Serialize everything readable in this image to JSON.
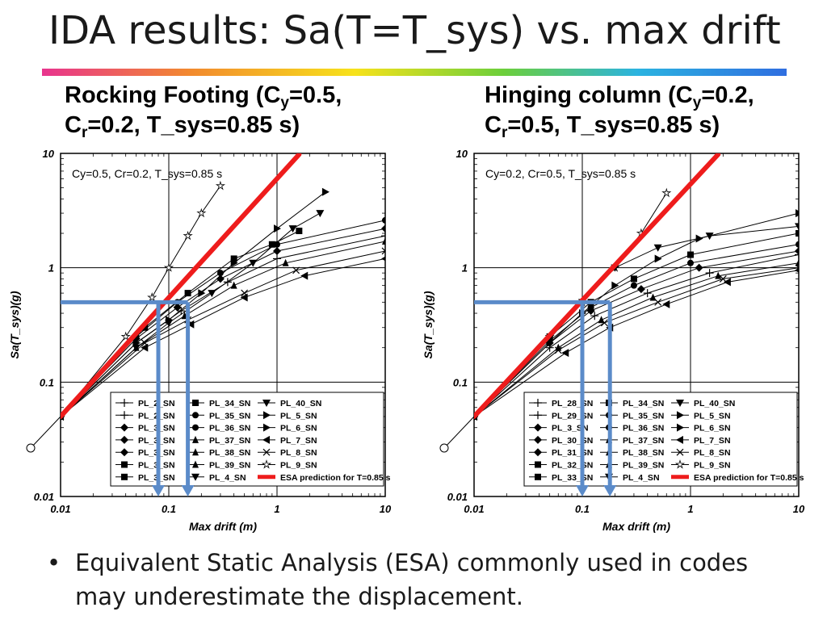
{
  "slide": {
    "title": "IDA results: Sa(T=T_sys) vs. max drift",
    "bullet": "Equivalent Static Analysis (ESA) commonly used in codes may underestimate the displacement.",
    "colors": {
      "esa_line": "#ee1c1c",
      "arrow": "#5b8bc9",
      "title_rule": [
        "#e8348e",
        "#f7e21b",
        "#2bb3e0",
        "#2f6ee0"
      ]
    }
  },
  "panels": [
    {
      "title_main": "Rocking Footing (C",
      "title_sub1": "y",
      "title_mid": "=0.5,",
      "title_line2_a": "C",
      "title_sub2": "r",
      "title_line2_b": "=0.2, T_sys=0.85 s)"
    },
    {
      "title_main": "Hinging column (C",
      "title_sub1": "y",
      "title_mid": "=0.2,",
      "title_line2_a": "C",
      "title_sub2": "r",
      "title_line2_b": "=0.5, T_sys=0.85 s)"
    }
  ],
  "chart_data": [
    {
      "type": "line",
      "annotation": "Cy=0.5, Cr=0.2, T_sys=0.85 s",
      "xlabel": "Max drift (m)",
      "ylabel": "Sa(T_sys)(g)",
      "xscale": "log",
      "yscale": "log",
      "xlim": [
        0.01,
        10
      ],
      "ylim": [
        0.01,
        10
      ],
      "xticks": [
        "0.01",
        "0.1",
        "1",
        "10"
      ],
      "yticks": [
        "0.01",
        "0.1",
        "1",
        "10"
      ],
      "grid": true,
      "legend_position": "bottom-right",
      "legend": [
        "PL_2_SN",
        "PL_2_SN",
        "PL_3_SN",
        "PL_3_SN",
        "PL_3_SN",
        "PL_3_SN",
        "PL_3_SN",
        "PL_34_SN",
        "PL_35_SN",
        "PL_36_SN",
        "PL_37_SN",
        "PL_38_SN",
        "PL_39_SN",
        "PL_4_SN",
        "PL_40_SN",
        "PL_5_SN",
        "PL_6_SN",
        "PL_7_SN",
        "PL_8_SN",
        "PL_9_SN",
        "ESA prediction for T=0.85 s"
      ],
      "esa_prediction": {
        "x": [
          0.01,
          1.6
        ],
        "y": [
          0.05,
          9.8
        ]
      },
      "design_level": {
        "sa": 0.5,
        "esa_drift": 0.08,
        "ida_drift": 0.15
      },
      "origin_point": {
        "x": 0.005,
        "y": 0.025
      },
      "ida_curves": [
        {
          "marker": "star",
          "x": [
            0.01,
            0.04,
            0.07,
            0.1,
            0.15,
            0.2,
            0.3
          ],
          "y": [
            0.05,
            0.25,
            0.55,
            1.0,
            1.9,
            3.0,
            5.2
          ]
        },
        {
          "marker": "tri_right",
          "x": [
            0.01,
            0.05,
            0.1,
            0.2,
            0.4,
            1.0,
            2.8
          ],
          "y": [
            0.05,
            0.22,
            0.35,
            0.6,
            1.1,
            2.2,
            4.6
          ]
        },
        {
          "marker": "tri_down",
          "x": [
            0.01,
            0.05,
            0.1,
            0.25,
            0.6,
            1.4,
            2.5
          ],
          "y": [
            0.05,
            0.2,
            0.33,
            0.6,
            1.1,
            2.2,
            3.0
          ]
        },
        {
          "marker": "square",
          "x": [
            0.01,
            0.06,
            0.15,
            0.4,
            0.9,
            1.6
          ],
          "y": [
            0.05,
            0.3,
            0.6,
            1.2,
            1.6,
            2.1
          ]
        },
        {
          "marker": "circle",
          "x": [
            0.01,
            0.05,
            0.12,
            0.3,
            1.0,
            10
          ],
          "y": [
            0.05,
            0.25,
            0.5,
            0.9,
            1.6,
            2.6
          ]
        },
        {
          "marker": "diamond",
          "x": [
            0.01,
            0.05,
            0.12,
            0.3,
            1.0,
            10
          ],
          "y": [
            0.05,
            0.24,
            0.45,
            0.8,
            1.4,
            2.2
          ]
        },
        {
          "marker": "plus",
          "x": [
            0.01,
            0.05,
            0.13,
            0.35,
            1.0,
            10
          ],
          "y": [
            0.05,
            0.22,
            0.42,
            0.75,
            1.2,
            1.9
          ]
        },
        {
          "marker": "tri_up",
          "x": [
            0.01,
            0.05,
            0.14,
            0.4,
            1.2,
            10
          ],
          "y": [
            0.05,
            0.2,
            0.38,
            0.7,
            1.1,
            1.7
          ]
        },
        {
          "marker": "x",
          "x": [
            0.01,
            0.06,
            0.15,
            0.5,
            1.5,
            10
          ],
          "y": [
            0.05,
            0.22,
            0.35,
            0.6,
            0.95,
            1.4
          ]
        },
        {
          "marker": "tri_left",
          "x": [
            0.01,
            0.06,
            0.16,
            0.5,
            1.8,
            10
          ],
          "y": [
            0.05,
            0.2,
            0.32,
            0.55,
            0.85,
            1.2
          ]
        }
      ]
    },
    {
      "type": "line",
      "annotation": "Cy=0.2, Cr=0.5, T_sys=0.85 s",
      "xlabel": "Max drift (m)",
      "ylabel": "Sa(T_sys)(g)",
      "xscale": "log",
      "yscale": "log",
      "xlim": [
        0.01,
        10
      ],
      "ylim": [
        0.01,
        10
      ],
      "xticks": [
        "0.01",
        "0.1",
        "1",
        "10"
      ],
      "yticks": [
        "0.01",
        "0.1",
        "1",
        "10"
      ],
      "grid": true,
      "legend_position": "bottom-right",
      "legend": [
        "PL_28_SN",
        "PL_29_SN",
        "PL_3_SN",
        "PL_30_SN",
        "PL_31_SN",
        "PL_32_SN",
        "PL_33_SN",
        "PL_34_SN",
        "PL_35_SN",
        "PL_36_SN",
        "PL_37_SN",
        "PL_38_SN",
        "PL_39_SN",
        "PL_4_SN",
        "PL_40_SN",
        "PL_5_SN",
        "PL_6_SN",
        "PL_7_SN",
        "PL_8_SN",
        "PL_9_SN",
        "ESA prediction for T=0.85 s"
      ],
      "esa_prediction": {
        "x": [
          0.01,
          1.8
        ],
        "y": [
          0.05,
          9.8
        ]
      },
      "design_level": {
        "sa": 0.5,
        "esa_drift": 0.1,
        "ida_drift": 0.18
      },
      "origin_point": {
        "x": 0.005,
        "y": 0.025
      },
      "ida_curves": [
        {
          "marker": "star",
          "x": [
            0.01,
            0.05,
            0.1,
            0.2,
            0.35,
            0.6
          ],
          "y": [
            0.05,
            0.25,
            0.5,
            1.0,
            2.0,
            4.5
          ]
        },
        {
          "marker": "tri_right",
          "x": [
            0.01,
            0.05,
            0.1,
            0.2,
            0.5,
            1.2,
            10
          ],
          "y": [
            0.05,
            0.22,
            0.4,
            0.7,
            1.2,
            1.8,
            3.0
          ]
        },
        {
          "marker": "tri_down",
          "x": [
            0.01,
            0.05,
            0.1,
            0.2,
            0.5,
            1.5,
            10
          ],
          "y": [
            0.05,
            0.24,
            0.5,
            1.0,
            1.5,
            1.9,
            2.3
          ]
        },
        {
          "marker": "square",
          "x": [
            0.01,
            0.05,
            0.12,
            0.3,
            1.0,
            10
          ],
          "y": [
            0.05,
            0.25,
            0.5,
            0.8,
            1.3,
            2.0
          ]
        },
        {
          "marker": "circle",
          "x": [
            0.01,
            0.05,
            0.12,
            0.3,
            1.0,
            10
          ],
          "y": [
            0.05,
            0.23,
            0.45,
            0.7,
            1.1,
            1.6
          ]
        },
        {
          "marker": "diamond",
          "x": [
            0.01,
            0.05,
            0.12,
            0.35,
            1.2,
            10
          ],
          "y": [
            0.05,
            0.22,
            0.42,
            0.65,
            1.0,
            1.4
          ]
        },
        {
          "marker": "plus",
          "x": [
            0.01,
            0.05,
            0.13,
            0.4,
            1.5,
            10
          ],
          "y": [
            0.05,
            0.2,
            0.38,
            0.6,
            0.9,
            1.3
          ]
        },
        {
          "marker": "tri_up",
          "x": [
            0.01,
            0.06,
            0.15,
            0.45,
            1.8,
            10
          ],
          "y": [
            0.05,
            0.2,
            0.35,
            0.55,
            0.85,
            1.1
          ]
        },
        {
          "marker": "x",
          "x": [
            0.01,
            0.06,
            0.16,
            0.5,
            2.0,
            10
          ],
          "y": [
            0.05,
            0.19,
            0.33,
            0.5,
            0.8,
            1.0
          ]
        },
        {
          "marker": "tri_left",
          "x": [
            0.01,
            0.07,
            0.18,
            0.6,
            2.2,
            10
          ],
          "y": [
            0.05,
            0.18,
            0.3,
            0.48,
            0.75,
            0.95
          ]
        }
      ]
    }
  ]
}
